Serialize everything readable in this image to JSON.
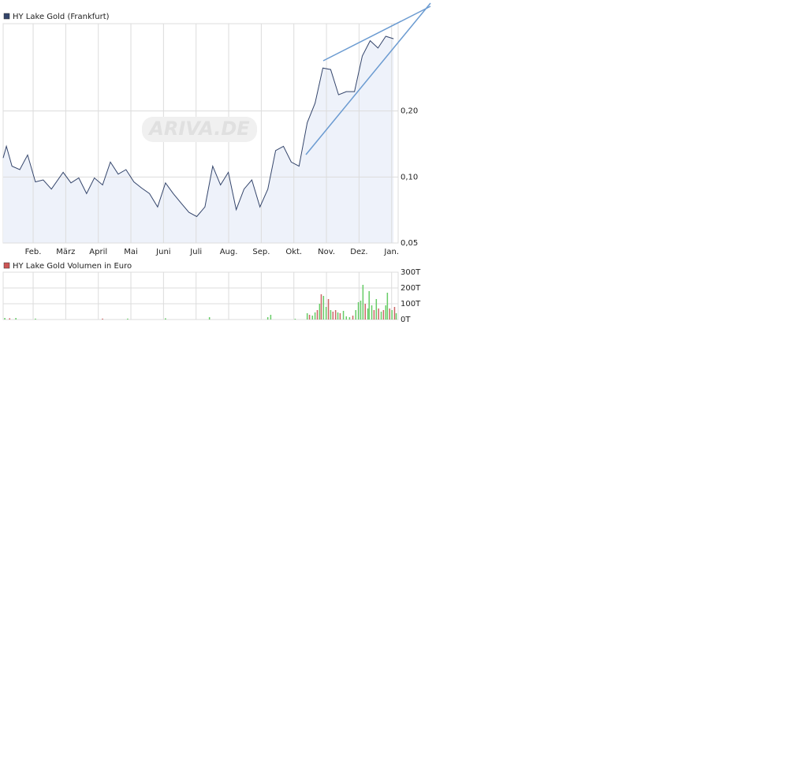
{
  "chart_data": [
    {
      "type": "line",
      "title": "HY Lake Gold (Frankfurt)",
      "watermark": "ARIVA.DE",
      "log_scale": true,
      "grid": true,
      "color": "#34456b",
      "fill": "#eef2fa",
      "legend_color": "#34456b",
      "xlim": [
        0.08,
        12.2
      ],
      "xticks": [
        {
          "value": 1,
          "label": "Feb."
        },
        {
          "value": 2,
          "label": "März"
        },
        {
          "value": 3,
          "label": "April"
        },
        {
          "value": 4,
          "label": "Mai"
        },
        {
          "value": 5,
          "label": "Juni"
        },
        {
          "value": 6,
          "label": "Juli"
        },
        {
          "value": 7,
          "label": "Aug."
        },
        {
          "value": 8,
          "label": "Sep."
        },
        {
          "value": 9,
          "label": "Okt."
        },
        {
          "value": 10,
          "label": "Nov."
        },
        {
          "value": 11,
          "label": "Dez."
        },
        {
          "value": 12,
          "label": "Jan."
        }
      ],
      "ylim": [
        0.05,
        0.5
      ],
      "yticks": [
        {
          "value": 0.05,
          "label": "0,05"
        },
        {
          "value": 0.1,
          "label": "0,10"
        },
        {
          "value": 0.2,
          "label": "0,20"
        }
      ],
      "x": [
        0.08,
        0.18,
        0.35,
        0.59,
        0.83,
        1.07,
        1.31,
        1.56,
        1.92,
        2.16,
        2.4,
        2.64,
        2.88,
        3.13,
        3.37,
        3.61,
        3.85,
        4.09,
        4.33,
        4.57,
        4.82,
        5.06,
        5.3,
        5.54,
        5.78,
        6.02,
        6.27,
        6.51,
        6.75,
        6.99,
        7.23,
        7.47,
        7.71,
        7.96,
        8.2,
        8.44,
        8.68,
        8.92,
        9.16,
        9.41,
        9.65,
        9.89,
        10.13,
        10.37,
        10.61,
        10.86,
        11.1,
        11.34,
        11.58,
        11.82,
        12.06
      ],
      "values": [
        0.122,
        0.138,
        0.112,
        0.108,
        0.126,
        0.095,
        0.097,
        0.088,
        0.105,
        0.094,
        0.099,
        0.084,
        0.099,
        0.092,
        0.117,
        0.103,
        0.108,
        0.095,
        0.089,
        0.084,
        0.073,
        0.094,
        0.084,
        0.076,
        0.069,
        0.066,
        0.073,
        0.112,
        0.092,
        0.105,
        0.071,
        0.088,
        0.097,
        0.073,
        0.088,
        0.132,
        0.138,
        0.117,
        0.112,
        0.177,
        0.217,
        0.314,
        0.309,
        0.237,
        0.245,
        0.245,
        0.356,
        0.418,
        0.387,
        0.438,
        0.427
      ]
    },
    {
      "type": "bar",
      "title": "HY Lake Gold Volumen in Euro",
      "grid": true,
      "legend_color": "#cc5555",
      "xlim": [
        0.08,
        12.2
      ],
      "ylim": [
        0,
        300
      ],
      "yticks": [
        {
          "value": 0,
          "label": "0T"
        },
        {
          "value": 100,
          "label": "100T"
        },
        {
          "value": 200,
          "label": "200T"
        },
        {
          "value": 300,
          "label": "300T"
        }
      ],
      "x": [
        0.13,
        0.28,
        0.47,
        1.07,
        3.13,
        3.9,
        5.06,
        6.41,
        8.2,
        8.29,
        9.04,
        9.41,
        9.48,
        9.57,
        9.65,
        9.72,
        9.79,
        9.84,
        9.91,
        9.99,
        10.06,
        10.13,
        10.2,
        10.28,
        10.35,
        10.42,
        10.52,
        10.61,
        10.71,
        10.81,
        10.9,
        10.98,
        11.05,
        11.12,
        11.19,
        11.27,
        11.31,
        11.39,
        11.46,
        11.53,
        11.6,
        11.68,
        11.75,
        11.82,
        11.87,
        11.94,
        12.01,
        12.09,
        12.14
      ],
      "values": [
        10,
        8,
        10,
        6,
        6,
        6,
        8,
        15,
        15,
        30,
        5,
        40,
        30,
        25,
        45,
        60,
        100,
        160,
        150,
        80,
        130,
        60,
        50,
        60,
        45,
        40,
        55,
        20,
        15,
        25,
        60,
        110,
        120,
        220,
        100,
        70,
        180,
        90,
        60,
        130,
        70,
        50,
        60,
        90,
        170,
        70,
        60,
        80,
        40
      ],
      "colors": [
        "#66cc66",
        "#cc6666",
        "#66cc66",
        "#66cc66",
        "#cc6666",
        "#66cc66",
        "#66cc66",
        "#66cc66",
        "#66cc66",
        "#66cc66",
        "#66cc66",
        "#66cc66",
        "#cc6666",
        "#66cc66",
        "#66cc66",
        "#cc6666",
        "#66cc66",
        "#cc6666",
        "#66cc66",
        "#66cc66",
        "#cc6666",
        "#66cc66",
        "#cc6666",
        "#cc6666",
        "#66cc66",
        "#cc6666",
        "#66cc66",
        "#66cc66",
        "#66cc66",
        "#cc6666",
        "#66cc66",
        "#66cc66",
        "#66cc66",
        "#66cc66",
        "#cc6666",
        "#66cc66",
        "#66cc66",
        "#66cc66",
        "#cc6666",
        "#66cc66",
        "#cc6666",
        "#66cc66",
        "#cc6666",
        "#66cc66",
        "#66cc66",
        "#cc6666",
        "#66cc66",
        "#cc6666",
        "#66cc66"
      ]
    }
  ]
}
